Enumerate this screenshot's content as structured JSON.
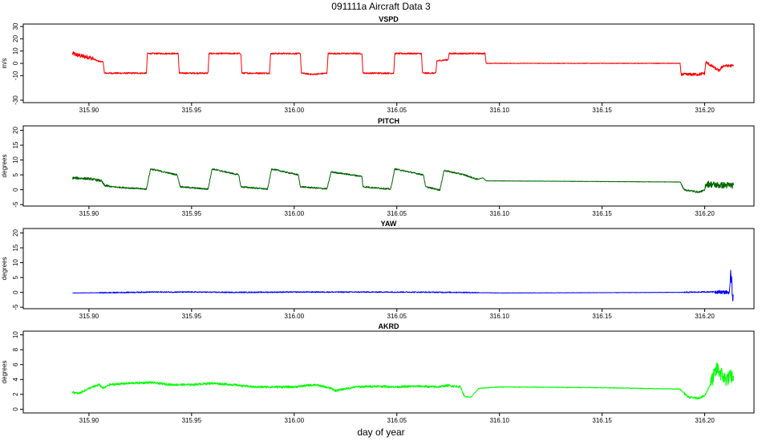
{
  "title": "091111a   Aircraft Data 3",
  "xlabel": "day of year",
  "chart_data": [
    {
      "type": "line",
      "title": "VSPD",
      "ylabel": "m/s",
      "xlim": [
        315.868,
        316.224
      ],
      "ylim": [
        -32,
        32
      ],
      "x_ticks": [
        315.9,
        315.95,
        316.0,
        316.05,
        316.1,
        316.15,
        316.2
      ],
      "x_tick_labels": [
        "315.90",
        "315.95",
        "316.00",
        "316.05",
        "316.10",
        "316.15",
        "316.20"
      ],
      "y_ticks": [
        -30,
        -10,
        0,
        10,
        20,
        30
      ],
      "y_tick_labels": [
        "-30",
        "-10",
        "0",
        "10",
        "20",
        "30"
      ],
      "series": [
        {
          "color": "#ff0000",
          "noise": [
            [
              315.892,
              315.902,
              1.8
            ],
            [
              315.902,
              316.093,
              0.6
            ],
            [
              316.093,
              316.188,
              0.25
            ],
            [
              316.188,
              316.214,
              1.2
            ]
          ],
          "x": [
            315.892,
            315.896,
            315.9,
            315.903,
            315.904,
            315.907,
            315.9075,
            315.928,
            315.9285,
            315.9435,
            315.944,
            315.958,
            315.9585,
            315.974,
            315.9745,
            315.988,
            315.9885,
            316.003,
            316.0035,
            316.009,
            316.016,
            316.0165,
            316.033,
            316.0335,
            316.0485,
            316.049,
            316.062,
            316.0625,
            316.069,
            316.0695,
            316.075,
            316.0755,
            316.093,
            316.0935,
            316.188,
            316.1885,
            316.197,
            316.2,
            316.2005,
            316.207,
            316.209,
            316.214
          ],
          "y": [
            8,
            6,
            5,
            3,
            2,
            1,
            -8,
            -8,
            8,
            8,
            -8,
            -8,
            8,
            8,
            -8,
            -8,
            8,
            8,
            -8,
            -9,
            -8,
            8,
            8,
            -8,
            -8,
            8,
            8,
            -8,
            -8,
            2,
            3,
            8,
            8,
            0,
            0,
            -9,
            -9,
            -8,
            1,
            -6,
            -2,
            -2
          ]
        }
      ]
    },
    {
      "type": "line",
      "title": "PITCH",
      "ylabel": "degrees",
      "xlim": [
        315.868,
        316.224
      ],
      "ylim": [
        -5.5,
        21.5
      ],
      "x_ticks": [
        315.9,
        315.95,
        316.0,
        316.05,
        316.1,
        316.15,
        316.2
      ],
      "x_tick_labels": [
        "315.90",
        "315.95",
        "316.00",
        "316.05",
        "316.10",
        "316.15",
        "316.20"
      ],
      "y_ticks": [
        -5,
        0,
        5,
        10,
        15,
        20
      ],
      "y_tick_labels": [
        "-5",
        "0",
        "5",
        "10",
        "15",
        "20"
      ],
      "series": [
        {
          "color": "#006400",
          "noise": [
            [
              315.892,
              315.91,
              0.4
            ],
            [
              315.91,
              316.09,
              0.25
            ],
            [
              316.09,
              316.188,
              0.06
            ],
            [
              316.188,
              316.2,
              0.3
            ],
            [
              316.2,
              316.214,
              1.1
            ]
          ],
          "x": [
            315.892,
            315.9,
            315.902,
            315.906,
            315.9075,
            315.911,
            315.928,
            315.93,
            315.943,
            315.9445,
            315.958,
            315.96,
            315.973,
            315.974,
            315.987,
            315.989,
            316.002,
            316.003,
            316.016,
            316.018,
            316.033,
            316.0335,
            316.047,
            316.049,
            316.063,
            316.064,
            316.071,
            316.073,
            316.083,
            316.089,
            316.092,
            316.0935,
            316.188,
            316.19,
            316.197,
            316.2,
            316.2005,
            316.207,
            316.214
          ],
          "y": [
            4,
            3.7,
            3.5,
            3,
            1.5,
            1,
            0.2,
            7,
            5,
            1,
            0.2,
            7,
            5,
            1,
            0.2,
            7,
            5,
            1,
            0.3,
            6,
            4.5,
            1,
            0.2,
            7,
            5,
            1,
            -0.1,
            6.5,
            5,
            3.5,
            4,
            3,
            2.6,
            0,
            -0.8,
            -0.2,
            2,
            1.5,
            1.5
          ]
        }
      ]
    },
    {
      "type": "line",
      "title": "YAW",
      "ylabel": "degrees",
      "xlim": [
        315.868,
        316.224
      ],
      "ylim": [
        -5.5,
        21.5
      ],
      "x_ticks": [
        315.9,
        315.95,
        316.0,
        316.05,
        316.1,
        316.15,
        316.2
      ],
      "x_tick_labels": [
        "315.90",
        "315.95",
        "316.00",
        "316.05",
        "316.10",
        "316.15",
        "316.20"
      ],
      "y_ticks": [
        -5,
        0,
        5,
        10,
        15,
        20
      ],
      "y_tick_labels": [
        "-5",
        "0",
        "5",
        "10",
        "15",
        "20"
      ],
      "series": [
        {
          "color": "#0000ff",
          "noise": [
            [
              315.892,
              315.905,
              0.05
            ],
            [
              315.905,
              316.09,
              0.18
            ],
            [
              316.09,
              316.19,
              0.06
            ],
            [
              316.19,
              316.205,
              0.2
            ],
            [
              316.205,
              316.2125,
              0.6
            ],
            [
              316.2125,
              316.2138,
              3.2
            ]
          ],
          "x": [
            315.892,
            315.91,
            315.93,
            315.95,
            315.97,
            316.0,
            316.02,
            316.05,
            316.08,
            316.1,
            316.15,
            316.19,
            316.205,
            316.212,
            316.213,
            316.2135,
            316.214
          ],
          "y": [
            -0.2,
            -0.1,
            0.1,
            0.1,
            0.0,
            0.1,
            0.1,
            0.1,
            0.0,
            -0.2,
            -0.1,
            0.0,
            0.2,
            0.0,
            6.5,
            -0.5,
            -1
          ]
        }
      ]
    },
    {
      "type": "line",
      "title": "AKRD",
      "ylabel": "degrees",
      "xlim": [
        315.868,
        316.224
      ],
      "ylim": [
        -0.5,
        10.5
      ],
      "x_ticks": [
        315.9,
        315.95,
        316.0,
        316.05,
        316.1,
        316.15,
        316.2
      ],
      "x_tick_labels": [
        "315.90",
        "315.95",
        "316.00",
        "316.05",
        "316.10",
        "316.15",
        "316.20"
      ],
      "y_ticks": [
        0,
        2,
        4,
        6,
        8,
        10
      ],
      "y_tick_labels": [
        "0",
        "2",
        "4",
        "6",
        "8",
        "10"
      ],
      "series": [
        {
          "color": "#00ff00",
          "noise": [
            [
              315.892,
              316.083,
              0.15
            ],
            [
              316.083,
              316.19,
              0.05
            ],
            [
              316.19,
              316.203,
              0.15
            ],
            [
              316.203,
              316.214,
              1.0
            ]
          ],
          "x": [
            315.892,
            315.895,
            315.9,
            315.905,
            315.907,
            315.91,
            315.92,
            315.93,
            315.94,
            315.95,
            315.96,
            315.97,
            315.98,
            316.0,
            316.01,
            316.015,
            316.018,
            316.02,
            316.03,
            316.04,
            316.05,
            316.06,
            316.07,
            316.075,
            316.081,
            316.083,
            316.086,
            316.09,
            316.1,
            316.15,
            316.188,
            316.192,
            316.197,
            316.2,
            316.203,
            316.206,
            316.21,
            316.214
          ],
          "y": [
            2.3,
            2.1,
            2.8,
            3.3,
            2.8,
            3.3,
            3.5,
            3.6,
            3.3,
            3.3,
            3.5,
            3.3,
            3.0,
            3.0,
            3.3,
            3.0,
            2.8,
            2.5,
            3.0,
            3.1,
            3.0,
            3.1,
            3.0,
            3.2,
            3.0,
            1.7,
            1.6,
            2.8,
            3.0,
            2.9,
            2.7,
            1.6,
            1.5,
            1.8,
            3.5,
            5.5,
            4.0,
            4.5
          ]
        }
      ]
    }
  ]
}
